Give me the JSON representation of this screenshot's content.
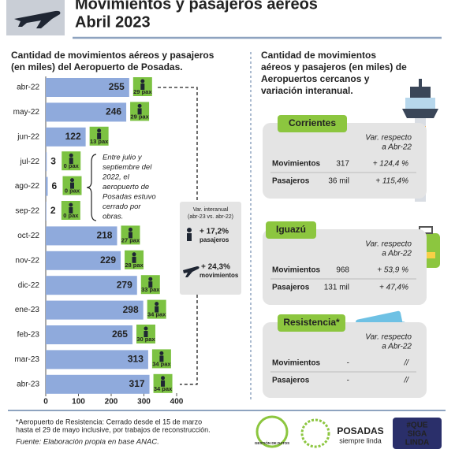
{
  "header": {
    "title_lines": [
      "Movimientos y pasajeros aéreos",
      "Abril 2023"
    ]
  },
  "chart_data": {
    "type": "bar",
    "orientation": "horizontal",
    "title_lines": [
      "Cantidad de movimientos aéreos y pasajeros",
      "(en miles) del Aeropuerto de Posadas."
    ],
    "categories": [
      "abr-22",
      "may-22",
      "jun-22",
      "jul-22",
      "ago-22",
      "sep-22",
      "oct-22",
      "nov-22",
      "dic-22",
      "ene-23",
      "feb-23",
      "mar-23",
      "abr-23"
    ],
    "series": [
      {
        "color": "#8faadc",
        "values": [
          255,
          246,
          122,
          3,
          6,
          2,
          218,
          229,
          279,
          298,
          265,
          313,
          317
        ]
      },
      {
        "color": "#7cc242",
        "values": [
          29,
          29,
          13,
          0,
          0,
          0,
          27,
          28,
          33,
          34,
          30,
          34,
          34
        ],
        "value_labels": [
          "29 pax",
          "29 pax",
          "13 pax",
          "0 pax",
          "0 pax",
          "0 pax",
          "27 pax",
          "28 pax",
          "33 pax",
          "34 pax",
          "30 pax",
          "34 pax",
          "34 pax"
        ]
      }
    ],
    "xlim": [
      0,
      400
    ],
    "xticks": [
      0,
      100,
      200,
      300,
      400
    ],
    "annotations": {
      "closure_note": [
        "Entre julio y",
        "septiembre del",
        "2022, el",
        "aeropuerto de",
        "Posadas estuvo",
        "cerrado por",
        "obras."
      ],
      "yoy_title": [
        "Var. interanual",
        "(abr-23 vs. abr-22)"
      ],
      "yoy_passengers": [
        "+ 17,2%",
        "pasajeros"
      ],
      "yoy_movements": [
        "+ 24,3%",
        "movimientos"
      ]
    }
  },
  "nearby": {
    "title_lines": [
      "Cantidad de movimientos",
      "aéreos y pasajeros (en miles) de",
      "Aeropuertos cercanos y",
      "variación interanual."
    ],
    "airports": [
      {
        "name": "Corrientes",
        "var_header": [
          "Var. respecto",
          "a Abr-22"
        ],
        "rows": [
          [
            "Movimientos",
            317,
            "+ 124,4 %"
          ],
          [
            "Pasajeros",
            "36 mil",
            "+ 115,4%"
          ]
        ]
      },
      {
        "name": "Iguazú",
        "var_header": [
          "Var. respecto",
          "a Abr-22"
        ],
        "rows": [
          [
            "Movimientos",
            968,
            "+ 53,9 %"
          ],
          [
            "Pasajeros",
            "131 mil",
            "+ 47,4%"
          ]
        ]
      },
      {
        "name": "Resistencia*",
        "var_header": [
          "Var. respecto",
          "a Abr-22"
        ],
        "rows": [
          [
            "Movimientos",
            "-",
            "//"
          ],
          [
            "Pasajeros",
            "-",
            "//"
          ]
        ]
      }
    ]
  },
  "footer": {
    "note_lines": [
      "*Aeropuerto de Resistencia: Cerrado desde el 15 de marzo",
      "hasta el 29 de mayo inclusive, por trabajos de reconstrucción."
    ],
    "source": "Fuente: Elaboración propia en base ANAC.",
    "logos": [
      "GESTIÓN DE DATOS",
      "POSADAS",
      "siempre linda",
      "#QUE",
      "SIGA",
      "LINDA"
    ]
  }
}
